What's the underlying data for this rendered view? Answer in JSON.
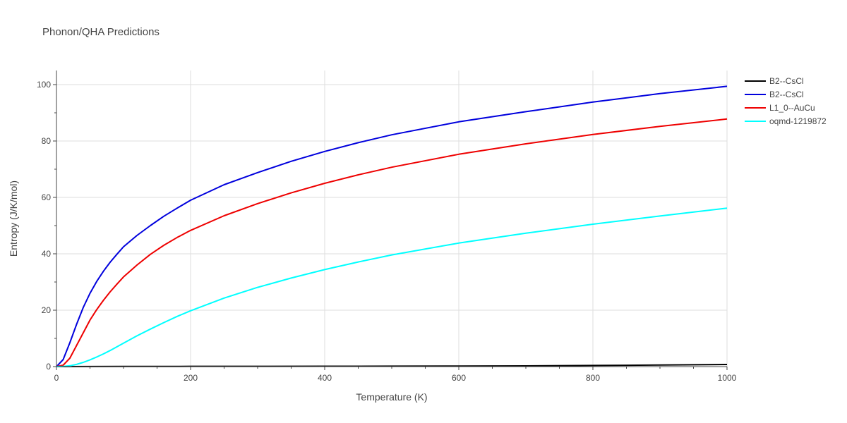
{
  "chart_data": {
    "type": "line",
    "title": "Phonon/QHA Predictions",
    "xlabel": "Temperature (K)",
    "ylabel": "Entropy (J/K/mol)",
    "xlim": [
      0,
      1000
    ],
    "ylim": [
      0,
      105
    ],
    "xticks": [
      0,
      200,
      400,
      600,
      800,
      1000
    ],
    "yticks": [
      0,
      20,
      40,
      60,
      80,
      100
    ],
    "grid": true,
    "legend_position": "top-right",
    "series": [
      {
        "name": "B2--CsCl",
        "color": "#000000",
        "x": [
          0,
          100,
          200,
          300,
          400,
          500,
          600,
          700,
          800,
          900,
          1000
        ],
        "y": [
          0,
          0.05,
          0.08,
          0.1,
          0.12,
          0.15,
          0.2,
          0.25,
          0.4,
          0.55,
          0.75
        ]
      },
      {
        "name": "B2--CsCl",
        "color": "#0000dd",
        "x": [
          0,
          10,
          20,
          30,
          40,
          50,
          60,
          70,
          80,
          90,
          100,
          120,
          140,
          160,
          180,
          200,
          250,
          300,
          350,
          400,
          450,
          500,
          600,
          700,
          800,
          900,
          1000
        ],
        "y": [
          0,
          2.5,
          8.5,
          15,
          21,
          26,
          30.2,
          33.8,
          37,
          39.8,
          42.5,
          46.5,
          50,
          53.3,
          56.2,
          59,
          64.5,
          68.8,
          72.8,
          76.3,
          79.4,
          82.2,
          86.8,
          90.4,
          93.8,
          96.8,
          99.4
        ]
      },
      {
        "name": "L1_0--AuCu",
        "color": "#ee0000",
        "x": [
          0,
          10,
          20,
          30,
          40,
          50,
          60,
          70,
          80,
          90,
          100,
          120,
          140,
          160,
          180,
          200,
          250,
          300,
          350,
          400,
          450,
          500,
          600,
          700,
          800,
          900,
          1000
        ],
        "y": [
          0,
          0.5,
          3,
          7.5,
          12,
          16.5,
          20.2,
          23.5,
          26.5,
          29.2,
          31.8,
          36,
          39.8,
          43,
          45.8,
          48.3,
          53.5,
          57.8,
          61.6,
          65,
          68,
          70.7,
          75.3,
          79,
          82.3,
          85.2,
          87.8
        ]
      },
      {
        "name": "oqmd-1219872",
        "color": "#00ffff",
        "x": [
          0,
          10,
          20,
          30,
          40,
          50,
          60,
          70,
          80,
          90,
          100,
          120,
          140,
          160,
          180,
          200,
          250,
          300,
          350,
          400,
          450,
          500,
          600,
          700,
          800,
          900,
          1000
        ],
        "y": [
          0,
          0.05,
          0.3,
          0.8,
          1.5,
          2.4,
          3.4,
          4.5,
          5.7,
          7,
          8.3,
          10.9,
          13.3,
          15.6,
          17.8,
          19.8,
          24.3,
          28.1,
          31.4,
          34.4,
          37.1,
          39.6,
          43.8,
          47.3,
          50.5,
          53.4,
          56.2
        ]
      }
    ]
  }
}
